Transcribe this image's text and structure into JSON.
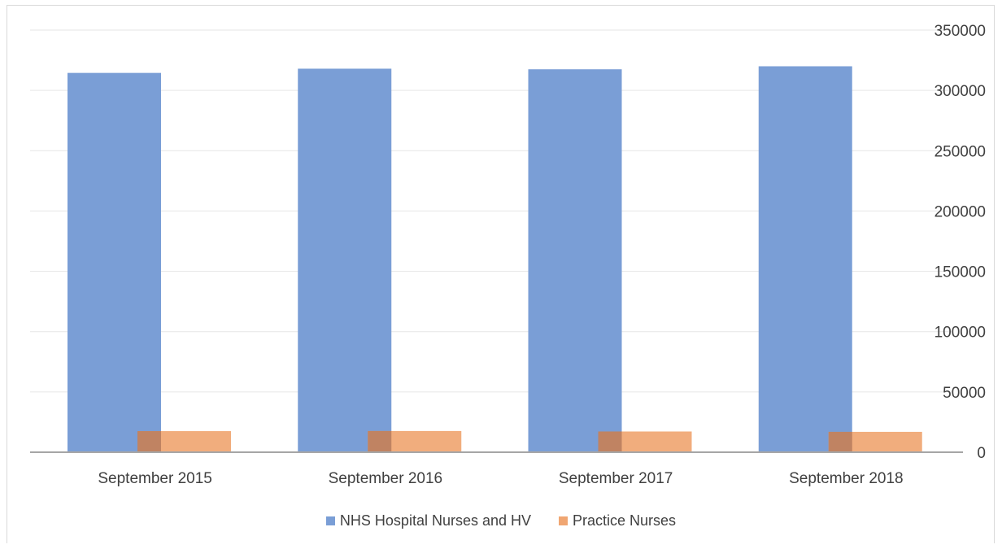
{
  "chart_data": {
    "type": "bar",
    "categories": [
      "September 2015",
      "September 2016",
      "September 2017",
      "September 2018"
    ],
    "series": [
      {
        "name": "NHS Hospital Nurses and HV",
        "values": [
          314500,
          318000,
          317500,
          320000
        ],
        "color": "#7a9ed6"
      },
      {
        "name": "Practice Nurses",
        "values": [
          17500,
          17600,
          17200,
          16900
        ],
        "color": "#f0a672"
      }
    ],
    "ylim": [
      0,
      350000
    ],
    "yticks": [
      "0",
      "50000",
      "100000",
      "150000",
      "200000",
      "250000",
      "300000",
      "350000"
    ],
    "y_axis_side": "right",
    "grid": true,
    "legend_position": "bottom",
    "title": "",
    "xlabel": "",
    "ylabel": ""
  }
}
